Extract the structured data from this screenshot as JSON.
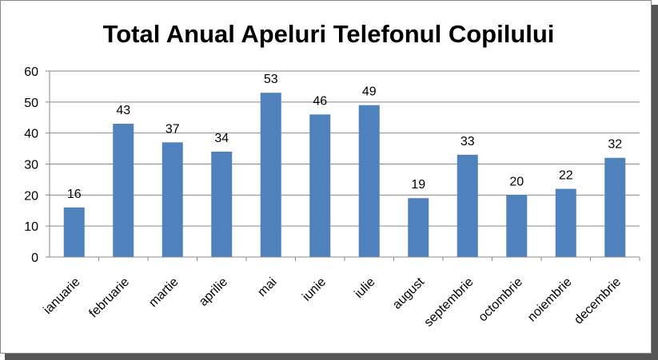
{
  "chart_data": {
    "type": "bar",
    "title": "Total Anual Apeluri Telefonul Copilului",
    "categories": [
      "ianuarie",
      "februarie",
      "martie",
      "aprilie",
      "mai",
      "iunie",
      "iulie",
      "august",
      "septembrie",
      "octombrie",
      "noiembrie",
      "decembrie"
    ],
    "values": [
      16,
      43,
      37,
      34,
      53,
      46,
      49,
      19,
      33,
      20,
      22,
      32
    ],
    "color": "#4f81bd",
    "ylim": [
      0,
      60
    ],
    "yticks": [
      0,
      10,
      20,
      30,
      40,
      50,
      60
    ],
    "grid": true
  }
}
